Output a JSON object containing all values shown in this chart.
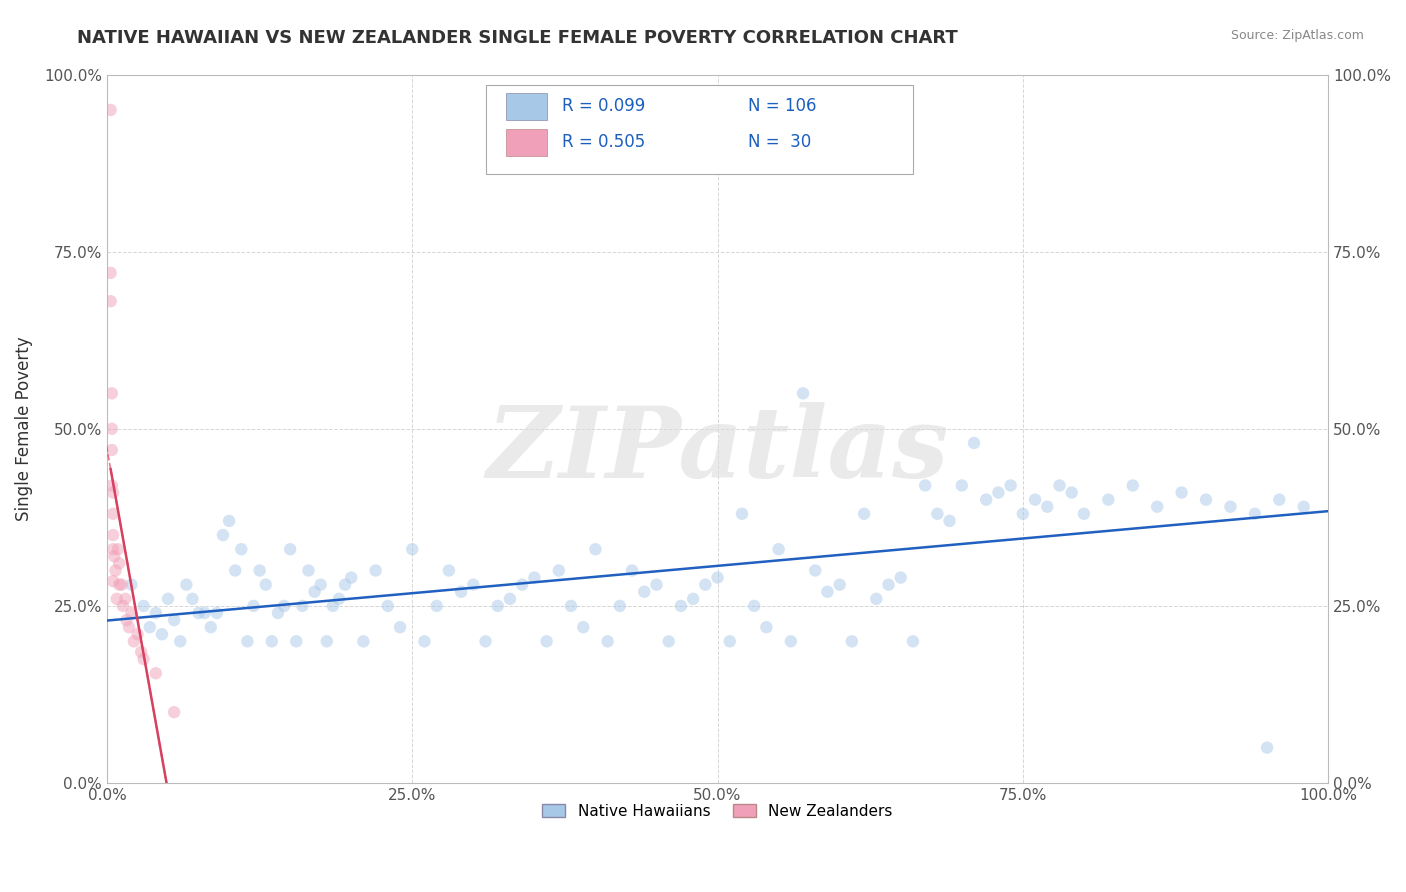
{
  "title": "NATIVE HAWAIIAN VS NEW ZEALANDER SINGLE FEMALE POVERTY CORRELATION CHART",
  "source": "Source: ZipAtlas.com",
  "ylabel": "Single Female Poverty",
  "xlim": [
    0,
    1
  ],
  "ylim": [
    0,
    1
  ],
  "xticks": [
    0.0,
    0.25,
    0.5,
    0.75,
    1.0
  ],
  "yticks": [
    0.0,
    0.25,
    0.5,
    0.75,
    1.0
  ],
  "xticklabels": [
    "0.0%",
    "25.0%",
    "50.0%",
    "75.0%",
    "100.0%"
  ],
  "yticklabels": [
    "0.0%",
    "25.0%",
    "50.0%",
    "75.0%",
    "100.0%"
  ],
  "native_hawaiian_R": 0.099,
  "native_hawaiian_N": 106,
  "new_zealander_R": 0.505,
  "new_zealander_N": 30,
  "scatter_alpha": 0.5,
  "scatter_size": 80,
  "blue_color": "#A8C8E8",
  "pink_color": "#F0A0B8",
  "blue_line_color": "#2060C0",
  "pink_line_color": "#D84060",
  "legend_label_1": "Native Hawaiians",
  "legend_label_2": "New Zealanders",
  "watermark": "ZIPatlas",
  "background_color": "#FFFFFF",
  "grid_color": "#CCCCCC",
  "native_hawaiians_x": [
    0.02,
    0.03,
    0.035,
    0.04,
    0.045,
    0.05,
    0.055,
    0.06,
    0.065,
    0.07,
    0.075,
    0.08,
    0.085,
    0.09,
    0.095,
    0.1,
    0.105,
    0.11,
    0.115,
    0.12,
    0.125,
    0.13,
    0.135,
    0.14,
    0.145,
    0.15,
    0.155,
    0.16,
    0.165,
    0.17,
    0.175,
    0.18,
    0.185,
    0.19,
    0.195,
    0.2,
    0.21,
    0.22,
    0.23,
    0.24,
    0.25,
    0.26,
    0.27,
    0.28,
    0.29,
    0.3,
    0.31,
    0.32,
    0.33,
    0.34,
    0.35,
    0.36,
    0.37,
    0.38,
    0.39,
    0.4,
    0.41,
    0.42,
    0.43,
    0.44,
    0.45,
    0.46,
    0.47,
    0.48,
    0.49,
    0.5,
    0.51,
    0.52,
    0.53,
    0.54,
    0.55,
    0.56,
    0.57,
    0.58,
    0.59,
    0.6,
    0.61,
    0.62,
    0.63,
    0.64,
    0.65,
    0.66,
    0.67,
    0.68,
    0.69,
    0.7,
    0.71,
    0.72,
    0.73,
    0.74,
    0.75,
    0.76,
    0.77,
    0.78,
    0.79,
    0.8,
    0.82,
    0.84,
    0.86,
    0.88,
    0.9,
    0.92,
    0.94,
    0.96,
    0.98,
    0.95
  ],
  "native_hawaiians_y": [
    0.28,
    0.25,
    0.22,
    0.24,
    0.21,
    0.26,
    0.23,
    0.2,
    0.28,
    0.26,
    0.24,
    0.24,
    0.22,
    0.24,
    0.35,
    0.37,
    0.3,
    0.33,
    0.2,
    0.25,
    0.3,
    0.28,
    0.2,
    0.24,
    0.25,
    0.33,
    0.2,
    0.25,
    0.3,
    0.27,
    0.28,
    0.2,
    0.25,
    0.26,
    0.28,
    0.29,
    0.2,
    0.3,
    0.25,
    0.22,
    0.33,
    0.2,
    0.25,
    0.3,
    0.27,
    0.28,
    0.2,
    0.25,
    0.26,
    0.28,
    0.29,
    0.2,
    0.3,
    0.25,
    0.22,
    0.33,
    0.2,
    0.25,
    0.3,
    0.27,
    0.28,
    0.2,
    0.25,
    0.26,
    0.28,
    0.29,
    0.2,
    0.38,
    0.25,
    0.22,
    0.33,
    0.2,
    0.55,
    0.3,
    0.27,
    0.28,
    0.2,
    0.38,
    0.26,
    0.28,
    0.29,
    0.2,
    0.42,
    0.38,
    0.37,
    0.42,
    0.48,
    0.4,
    0.41,
    0.42,
    0.38,
    0.4,
    0.39,
    0.42,
    0.41,
    0.38,
    0.4,
    0.42,
    0.39,
    0.41,
    0.4,
    0.39,
    0.38,
    0.4,
    0.39,
    0.05
  ],
  "new_zealanders_x": [
    0.003,
    0.003,
    0.003,
    0.004,
    0.004,
    0.004,
    0.004,
    0.005,
    0.005,
    0.005,
    0.005,
    0.005,
    0.006,
    0.007,
    0.008,
    0.009,
    0.01,
    0.01,
    0.012,
    0.013,
    0.015,
    0.016,
    0.018,
    0.02,
    0.022,
    0.025,
    0.028,
    0.03,
    0.04,
    0.055
  ],
  "new_zealanders_y": [
    0.95,
    0.72,
    0.68,
    0.55,
    0.5,
    0.47,
    0.42,
    0.41,
    0.38,
    0.35,
    0.33,
    0.285,
    0.32,
    0.3,
    0.26,
    0.33,
    0.31,
    0.28,
    0.28,
    0.25,
    0.26,
    0.23,
    0.22,
    0.24,
    0.2,
    0.21,
    0.185,
    0.175,
    0.155,
    0.1
  ]
}
